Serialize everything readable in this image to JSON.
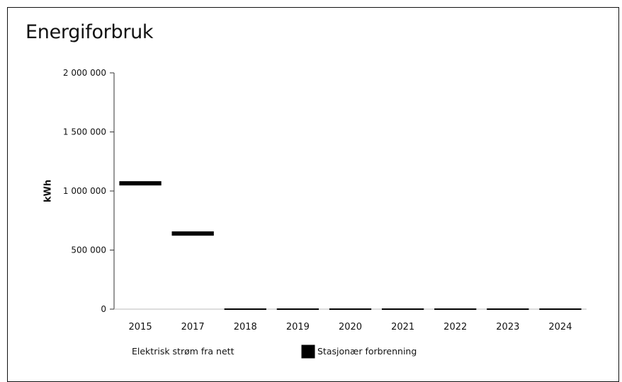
{
  "chart_data": {
    "type": "bar",
    "title": "Energiforbruk",
    "xlabel": "",
    "ylabel": "kWh",
    "categories": [
      "2015",
      "2017",
      "2018",
      "2019",
      "2020",
      "2021",
      "2022",
      "2023",
      "2024"
    ],
    "ylim": [
      0,
      2000000
    ],
    "yticks": [
      0,
      500000,
      1000000,
      1500000,
      2000000
    ],
    "ytick_labels": [
      "0",
      "500 000",
      "1 000 000",
      "1 500 000",
      "2 000 000"
    ],
    "grid": false,
    "legend_position": "bottom",
    "series": [
      {
        "name": "Elektrisk strøm fra nett",
        "color": "#ffffff",
        "values": [
          0,
          0,
          0,
          0,
          0,
          0,
          0,
          0,
          0
        ]
      },
      {
        "name": "Stasjonær forbrenning",
        "color": "#000000",
        "values": [
          1065000,
          640000,
          0,
          0,
          0,
          0,
          0,
          0,
          0
        ]
      }
    ]
  }
}
